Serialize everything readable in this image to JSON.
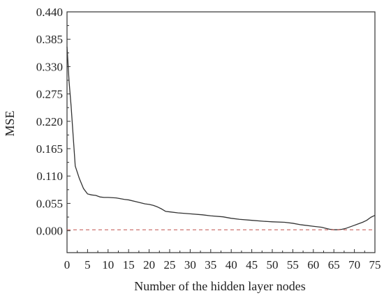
{
  "chart_data": {
    "type": "line",
    "title": "",
    "xlabel": "Number of the hidden layer nodes",
    "ylabel": "MSE",
    "xlim": [
      0,
      75
    ],
    "ylim": [
      -0.044,
      0.44
    ],
    "x_ticks": [
      0,
      5,
      10,
      15,
      20,
      25,
      30,
      35,
      40,
      45,
      50,
      55,
      60,
      65,
      70,
      75
    ],
    "x_tick_labels": [
      "0",
      "5",
      "10",
      "15",
      "20",
      "25",
      "30",
      "35",
      "40",
      "45",
      "50",
      "55",
      "60",
      "65",
      "70",
      "75"
    ],
    "y_ticks": [
      0.0,
      0.055,
      0.11,
      0.165,
      0.22,
      0.275,
      0.33,
      0.385,
      0.44
    ],
    "y_tick_labels": [
      "0.000",
      "0.055",
      "0.110",
      "0.165",
      "0.220",
      "0.275",
      "0.330",
      "0.385",
      "0.440"
    ],
    "grid": false,
    "legend": "none",
    "series": [
      {
        "color": "#333333",
        "style": "solid",
        "x": [
          0,
          0.5,
          1,
          1.5,
          2,
          3,
          4,
          5,
          6,
          7,
          8,
          9,
          10,
          12,
          14,
          15,
          17,
          19,
          20,
          21,
          22,
          23,
          24,
          25,
          27,
          30,
          33,
          35,
          38,
          40,
          42,
          45,
          48,
          50,
          53,
          55,
          57,
          60,
          62,
          63,
          64,
          65,
          66,
          67,
          68,
          69,
          70,
          71,
          72,
          73,
          74,
          75
        ],
        "y": [
          0.37,
          0.3,
          0.25,
          0.19,
          0.13,
          0.105,
          0.085,
          0.074,
          0.072,
          0.071,
          0.068,
          0.067,
          0.067,
          0.066,
          0.063,
          0.062,
          0.058,
          0.054,
          0.053,
          0.051,
          0.048,
          0.044,
          0.039,
          0.038,
          0.036,
          0.034,
          0.032,
          0.03,
          0.028,
          0.025,
          0.023,
          0.021,
          0.019,
          0.018,
          0.017,
          0.015,
          0.012,
          0.009,
          0.007,
          0.005,
          0.003,
          0.002,
          0.002,
          0.003,
          0.005,
          0.008,
          0.011,
          0.014,
          0.017,
          0.021,
          0.027,
          0.031
        ]
      },
      {
        "color": "#c0504d",
        "style": "dashed",
        "x": [
          0,
          75
        ],
        "y": [
          0.002,
          0.002
        ]
      }
    ]
  }
}
